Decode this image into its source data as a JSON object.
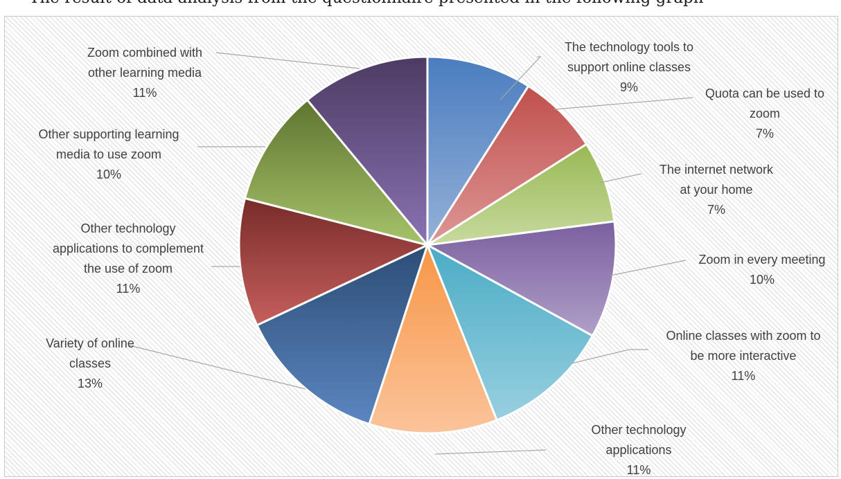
{
  "heading": "The result of data analysis from the questionnaire presented in the following graph",
  "chart_data": {
    "type": "pie",
    "title": "",
    "start_angle_deg": 0,
    "direction": "clockwise",
    "slices": [
      {
        "label": [
          "The technology tools to",
          "support online classes"
        ],
        "percent": "9%",
        "value": 9,
        "color_light": "#95b1d8",
        "color_dark": "#4a7dbf"
      },
      {
        "label": [
          "Quota can be used to",
          "zoom"
        ],
        "percent": "7%",
        "value": 7,
        "color_light": "#dd9796",
        "color_dark": "#c0504d"
      },
      {
        "label": [
          "The internet network",
          "at your home"
        ],
        "percent": "7%",
        "value": 7,
        "color_light": "#c8da9e",
        "color_dark": "#98b954"
      },
      {
        "label": [
          "Zoom in every meeting"
        ],
        "percent": "10%",
        "value": 10,
        "color_light": "#b0a0c8",
        "color_dark": "#7a5f9e"
      },
      {
        "label": [
          "Online classes with zoom to",
          "be more interactive"
        ],
        "percent": "11%",
        "value": 11,
        "color_light": "#98cfe0",
        "color_dark": "#4aacc5"
      },
      {
        "label": [
          "Other technology",
          "applications"
        ],
        "percent": "11%",
        "value": 11,
        "color_light": "#fbc49b",
        "color_dark": "#f79646"
      },
      {
        "label": [
          "Variety of online",
          "classes"
        ],
        "percent": "13%",
        "value": 13,
        "color_light": "#5b86c0",
        "color_dark": "#2c4d75"
      },
      {
        "label": [
          "Other technology",
          "applications to complement",
          "the use of zoom"
        ],
        "percent": "11%",
        "value": 11,
        "color_light": "#c65f5c",
        "color_dark": "#772c2a"
      },
      {
        "label": [
          "Other supporting learning",
          "media to use zoom"
        ],
        "percent": "10%",
        "value": 10,
        "color_light": "#a6c36a",
        "color_dark": "#5f7530"
      },
      {
        "label": [
          "Zoom combined with",
          "other learning media"
        ],
        "percent": "11%",
        "value": 11,
        "color_light": "#8a72b3",
        "color_dark": "#4d3b62"
      }
    ]
  }
}
